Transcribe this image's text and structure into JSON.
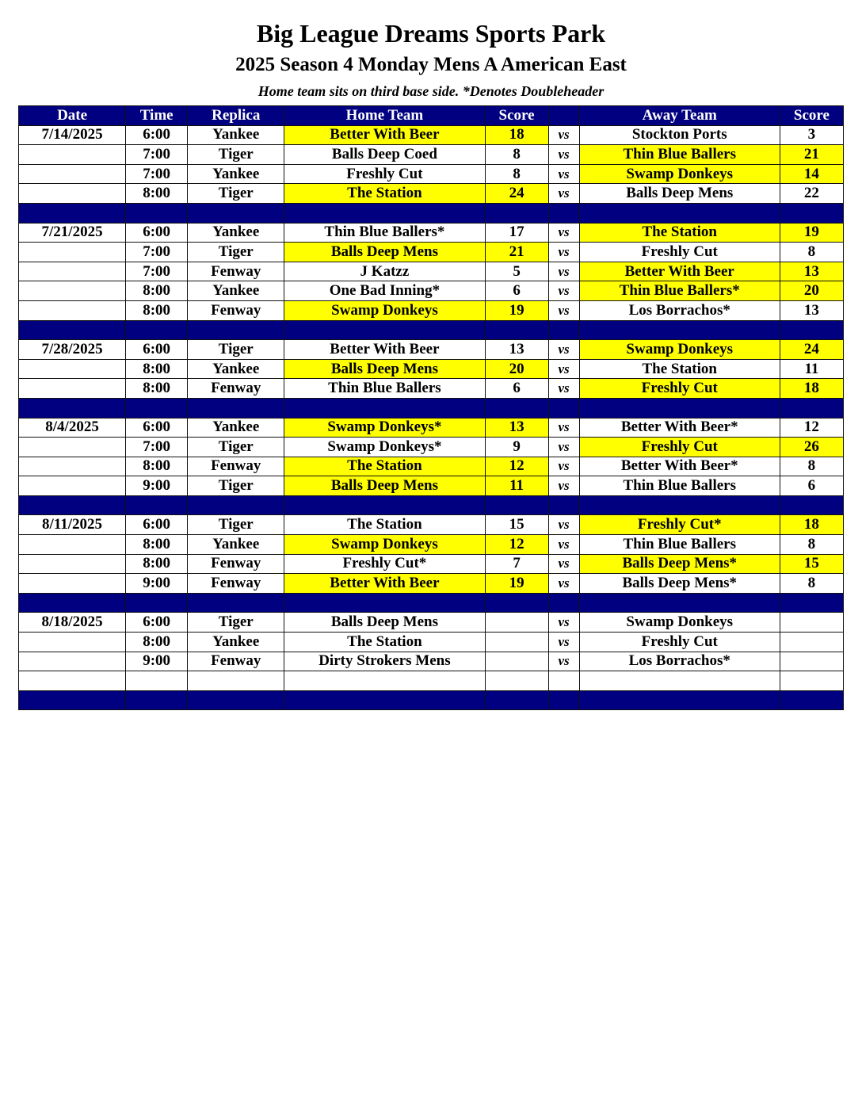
{
  "title": "Big League Dreams Sports Park",
  "subtitle": "2025 Season 4 Monday Mens A American East",
  "note": "Home team sits on third base side.  *Denotes Doubleheader",
  "colors": {
    "header_bg": "#000080",
    "winner_highlight": "#ffff00"
  },
  "columns": [
    "Date",
    "Time",
    "Replica",
    "Home Team",
    "Score",
    "",
    "Away Team",
    "Score"
  ],
  "vs_label": "vs",
  "weeks": [
    {
      "date": "7/14/2025",
      "games": [
        {
          "time": "6:00",
          "replica": "Yankee",
          "home": "Better With Beer",
          "home_score": "18",
          "away": "Stockton Ports",
          "away_score": "3",
          "winner": "home"
        },
        {
          "time": "7:00",
          "replica": "Tiger",
          "home": "Balls Deep Coed",
          "home_score": "8",
          "away": "Thin Blue Ballers",
          "away_score": "21",
          "winner": "away"
        },
        {
          "time": "7:00",
          "replica": "Yankee",
          "home": "Freshly Cut",
          "home_score": "8",
          "away": "Swamp Donkeys",
          "away_score": "14",
          "winner": "away"
        },
        {
          "time": "8:00",
          "replica": "Tiger",
          "home": "The Station",
          "home_score": "24",
          "away": "Balls Deep Mens",
          "away_score": "22",
          "winner": "home"
        }
      ]
    },
    {
      "date": "7/21/2025",
      "games": [
        {
          "time": "6:00",
          "replica": "Yankee",
          "home": "Thin Blue Ballers*",
          "home_score": "17",
          "away": "The Station",
          "away_score": "19",
          "winner": "away"
        },
        {
          "time": "7:00",
          "replica": "Tiger",
          "home": "Balls Deep Mens",
          "home_score": "21",
          "away": "Freshly Cut",
          "away_score": "8",
          "winner": "home"
        },
        {
          "time": "7:00",
          "replica": "Fenway",
          "home": "J Katzz",
          "home_score": "5",
          "away": "Better With Beer",
          "away_score": "13",
          "winner": "away"
        },
        {
          "time": "8:00",
          "replica": "Yankee",
          "home": "One Bad Inning*",
          "home_score": "6",
          "away": "Thin Blue Ballers*",
          "away_score": "20",
          "winner": "away"
        },
        {
          "time": "8:00",
          "replica": "Fenway",
          "home": "Swamp Donkeys",
          "home_score": "19",
          "away": "Los Borrachos*",
          "away_score": "13",
          "winner": "home"
        }
      ]
    },
    {
      "date": "7/28/2025",
      "games": [
        {
          "time": "6:00",
          "replica": "Tiger",
          "home": "Better With Beer",
          "home_score": "13",
          "away": "Swamp Donkeys",
          "away_score": "24",
          "winner": "away"
        },
        {
          "time": "8:00",
          "replica": "Yankee",
          "home": "Balls Deep Mens",
          "home_score": "20",
          "away": "The Station",
          "away_score": "11",
          "winner": "home"
        },
        {
          "time": "8:00",
          "replica": "Fenway",
          "home": "Thin Blue Ballers",
          "home_score": "6",
          "away": "Freshly Cut",
          "away_score": "18",
          "winner": "away"
        }
      ]
    },
    {
      "date": "8/4/2025",
      "games": [
        {
          "time": "6:00",
          "replica": "Yankee",
          "home": "Swamp Donkeys*",
          "home_score": "13",
          "away": "Better With Beer*",
          "away_score": "12",
          "winner": "home"
        },
        {
          "time": "7:00",
          "replica": "Tiger",
          "home": "Swamp Donkeys*",
          "home_score": "9",
          "away": "Freshly Cut",
          "away_score": "26",
          "winner": "away"
        },
        {
          "time": "8:00",
          "replica": "Fenway",
          "home": "The Station",
          "home_score": "12",
          "away": "Better With Beer*",
          "away_score": "8",
          "winner": "home"
        },
        {
          "time": "9:00",
          "replica": "Tiger",
          "home": "Balls Deep Mens",
          "home_score": "11",
          "away": "Thin Blue Ballers",
          "away_score": "6",
          "winner": "home"
        }
      ]
    },
    {
      "date": "8/11/2025",
      "games": [
        {
          "time": "6:00",
          "replica": "Tiger",
          "home": "The Station",
          "home_score": "15",
          "away": "Freshly Cut*",
          "away_score": "18",
          "winner": "away"
        },
        {
          "time": "8:00",
          "replica": "Yankee",
          "home": "Swamp Donkeys",
          "home_score": "12",
          "away": "Thin Blue Ballers",
          "away_score": "8",
          "winner": "home"
        },
        {
          "time": "8:00",
          "replica": "Fenway",
          "home": "Freshly Cut*",
          "home_score": "7",
          "away": "Balls Deep Mens*",
          "away_score": "15",
          "winner": "away"
        },
        {
          "time": "9:00",
          "replica": "Fenway",
          "home": "Better With Beer",
          "home_score": "19",
          "away": "Balls Deep Mens*",
          "away_score": "8",
          "winner": "home"
        }
      ]
    },
    {
      "date": "8/18/2025",
      "games": [
        {
          "time": "6:00",
          "replica": "Tiger",
          "home": "Balls Deep Mens",
          "home_score": "",
          "away": "Swamp Donkeys",
          "away_score": "",
          "winner": ""
        },
        {
          "time": "8:00",
          "replica": "Yankee",
          "home": "The Station",
          "home_score": "",
          "away": "Freshly Cut",
          "away_score": "",
          "winner": ""
        },
        {
          "time": "9:00",
          "replica": "Fenway",
          "home": "Dirty Strokers Mens",
          "home_score": "",
          "away": "Los Borrachos*",
          "away_score": "",
          "winner": ""
        }
      ],
      "blank_rows": 1
    }
  ]
}
